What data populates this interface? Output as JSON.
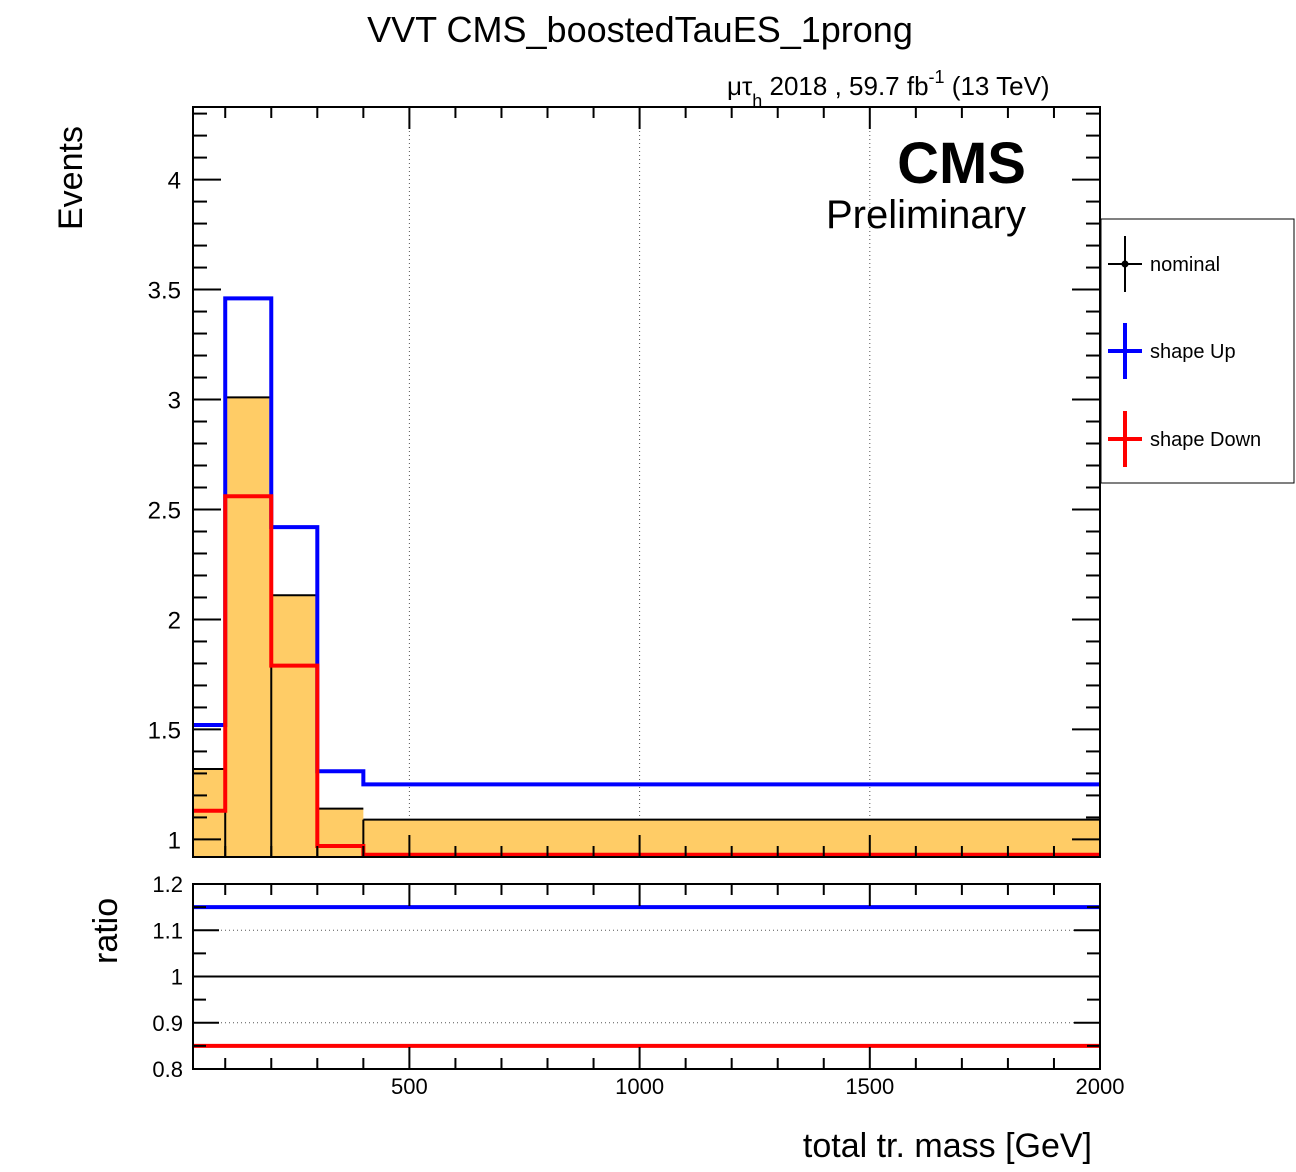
{
  "chart_data": [
    {
      "type": "histogram",
      "title": "VVT CMS_boostedTauES_1prong",
      "lumi": {
        "channel_mu": "μτ",
        "channel_sub": "h",
        "year_lumi": "2018 , 59.7 fb",
        "lumi_exp": "-1",
        "energy": "(13 TeV)"
      },
      "cms_label": "CMS",
      "cms_sublabel": "Preliminary",
      "ylabel": "Events",
      "xlim": [
        30,
        2000
      ],
      "ylim": [
        0.92,
        4.33
      ],
      "grid_x": true,
      "yticks": [
        {
          "value": 1,
          "label": "1"
        },
        {
          "value": 1.5,
          "label": "1.5"
        },
        {
          "value": 2,
          "label": "2"
        },
        {
          "value": 2.5,
          "label": "2.5"
        },
        {
          "value": 3,
          "label": "3"
        },
        {
          "value": 3.5,
          "label": "3.5"
        },
        {
          "value": 4,
          "label": "4"
        }
      ],
      "bin_edges": [
        30,
        100,
        200,
        300,
        400,
        2000
      ],
      "series": [
        {
          "name": "nominal",
          "color": "#000000",
          "fill": "#ffcc66",
          "values": [
            1.32,
            3.01,
            2.11,
            1.14,
            1.09
          ]
        },
        {
          "name": "shape Up",
          "color": "#0000ff",
          "values": [
            1.52,
            3.46,
            2.42,
            1.31,
            1.25
          ]
        },
        {
          "name": "shape Down",
          "color": "#ff0000",
          "values": [
            1.13,
            2.56,
            1.79,
            0.97,
            0.93
          ]
        }
      ],
      "legend": {
        "position": "right",
        "entries": [
          "nominal",
          "shape Up",
          "shape Down"
        ]
      }
    },
    {
      "type": "line",
      "ylabel": "ratio",
      "xlabel": "total tr. mass [GeV]",
      "xlim": [
        30,
        2000
      ],
      "ylim": [
        0.8,
        1.2
      ],
      "grid_y": true,
      "xticks": [
        {
          "value": 500,
          "label": "500"
        },
        {
          "value": 1000,
          "label": "1000"
        },
        {
          "value": 1500,
          "label": "1500"
        },
        {
          "value": 2000,
          "label": "2000"
        }
      ],
      "yticks": [
        {
          "value": 0.8,
          "label": "0.8"
        },
        {
          "value": 0.9,
          "label": "0.9"
        },
        {
          "value": 1,
          "label": "1"
        },
        {
          "value": 1.1,
          "label": "1.1"
        },
        {
          "value": 1.2,
          "label": "1.2"
        }
      ],
      "series": [
        {
          "name": "shape Up",
          "color": "#0000ff",
          "value": 1.15
        },
        {
          "name": "nominal",
          "color": "#000000",
          "value": 1.0
        },
        {
          "name": "shape Down",
          "color": "#ff0000",
          "value": 0.85
        }
      ]
    }
  ]
}
